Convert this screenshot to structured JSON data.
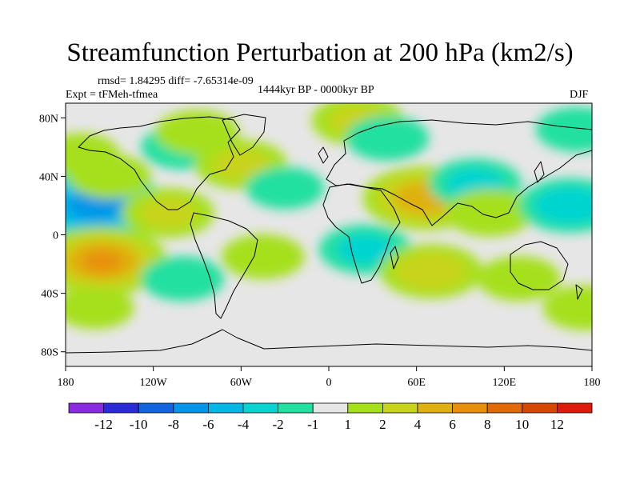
{
  "title": "Streamfunction Perturbation at 200 hPa (km2/s)",
  "stats": "rmsd= 1.84295 diff= -7.65314e-09",
  "experiment": "Expt = tFMeh-tfmea",
  "period": "1444kyr BP - 0000kyr BP",
  "season": "DJF",
  "chart_data": {
    "type": "heatmap",
    "projection": "cylindrical-equidistant",
    "xlim": [
      -180,
      180
    ],
    "ylim": [
      -90,
      90
    ],
    "x_ticks": [
      {
        "value": -180,
        "label": "180"
      },
      {
        "value": -120,
        "label": "120W"
      },
      {
        "value": -60,
        "label": "60W"
      },
      {
        "value": 0,
        "label": "0"
      },
      {
        "value": 60,
        "label": "60E"
      },
      {
        "value": 120,
        "label": "120E"
      },
      {
        "value": 180,
        "label": "180"
      }
    ],
    "y_ticks": [
      {
        "value": 80,
        "label": "80N"
      },
      {
        "value": 40,
        "label": "40N"
      },
      {
        "value": 0,
        "label": "0"
      },
      {
        "value": -40,
        "label": "40S"
      },
      {
        "value": -80,
        "label": "80S"
      }
    ],
    "colorbar": {
      "labels": [
        "-12",
        "-10",
        "-8",
        "-6",
        "-4",
        "-2",
        "-1",
        "1",
        "2",
        "4",
        "6",
        "8",
        "10",
        "12"
      ],
      "colors": [
        "#8a2be2",
        "#2a2ad8",
        "#1166e0",
        "#0096e8",
        "#00b7e6",
        "#05d4d0",
        "#22e0a0",
        "#e6e6e6",
        "#a6e01a",
        "#c8d41a",
        "#e0b010",
        "#e8900c",
        "#e06a08",
        "#d84606",
        "#e01a0a"
      ]
    },
    "anomalies": [
      {
        "lon": -160,
        "lat": 20,
        "value": -8
      },
      {
        "lon": -155,
        "lat": -18,
        "value": 7
      },
      {
        "lon": -170,
        "lat": 55,
        "value": 1.5
      },
      {
        "lon": -150,
        "lat": 40,
        "value": 2
      },
      {
        "lon": -100,
        "lat": 60,
        "value": -2
      },
      {
        "lon": -90,
        "lat": 70,
        "value": 2
      },
      {
        "lon": -60,
        "lat": 48,
        "value": 3
      },
      {
        "lon": -110,
        "lat": 15,
        "value": 3
      },
      {
        "lon": -100,
        "lat": -30,
        "value": -2
      },
      {
        "lon": -45,
        "lat": -15,
        "value": 2
      },
      {
        "lon": -30,
        "lat": 32,
        "value": -1.5
      },
      {
        "lon": 20,
        "lat": 78,
        "value": 3
      },
      {
        "lon": 40,
        "lat": 66,
        "value": -2
      },
      {
        "lon": 65,
        "lat": 25,
        "value": 6
      },
      {
        "lon": 100,
        "lat": 35,
        "value": -3
      },
      {
        "lon": 110,
        "lat": 15,
        "value": 2.5
      },
      {
        "lon": 25,
        "lat": -10,
        "value": -3
      },
      {
        "lon": 70,
        "lat": -25,
        "value": 4
      },
      {
        "lon": 130,
        "lat": -30,
        "value": 2
      },
      {
        "lon": 165,
        "lat": 20,
        "value": -4
      },
      {
        "lon": 170,
        "lat": 72,
        "value": -2
      },
      {
        "lon": 175,
        "lat": -50,
        "value": 2
      },
      {
        "lon": -160,
        "lat": -50,
        "value": 1.5
      }
    ]
  }
}
